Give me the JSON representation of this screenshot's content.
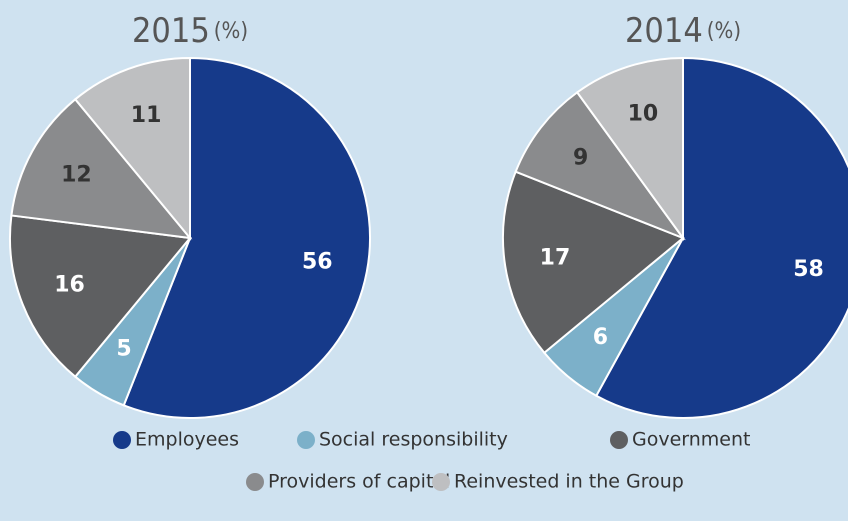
{
  "chart_data": [
    {
      "type": "pie",
      "title": "2015",
      "unit": "(%)",
      "values": [
        56,
        5,
        16,
        12,
        11
      ]
    },
    {
      "type": "pie",
      "title": "2014",
      "unit": "(%)",
      "values": [
        58,
        6,
        17,
        9,
        10
      ]
    }
  ],
  "legend": {
    "categories": [
      "Employees",
      "Social responsibility",
      "Government",
      "Providers of capital",
      "Reinvested in the Group"
    ],
    "colors": [
      "#163a8a",
      "#7cb0c9",
      "#5e5f61",
      "#8a8b8d",
      "#bebfc1"
    ],
    "label_colors": [
      "#ffffff",
      "#ffffff",
      "#ffffff",
      "#333333",
      "#333333"
    ]
  }
}
